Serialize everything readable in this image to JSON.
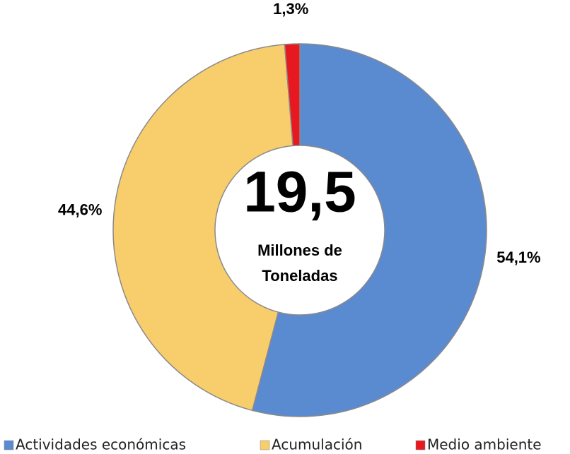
{
  "chart_data": {
    "type": "donut",
    "categories": [
      "Actividades económicas",
      "Acumulación",
      "Medio ambiente"
    ],
    "values": [
      54.1,
      44.6,
      1.3
    ],
    "value_labels": [
      "54,1%",
      "44,6%",
      "1,3%"
    ],
    "colors": [
      "#5a8ad0",
      "#f8cd6c",
      "#e81820"
    ],
    "center_value": "19,5",
    "center_caption": [
      "Millones de",
      "Toneladas"
    ],
    "legend": "bottom"
  }
}
